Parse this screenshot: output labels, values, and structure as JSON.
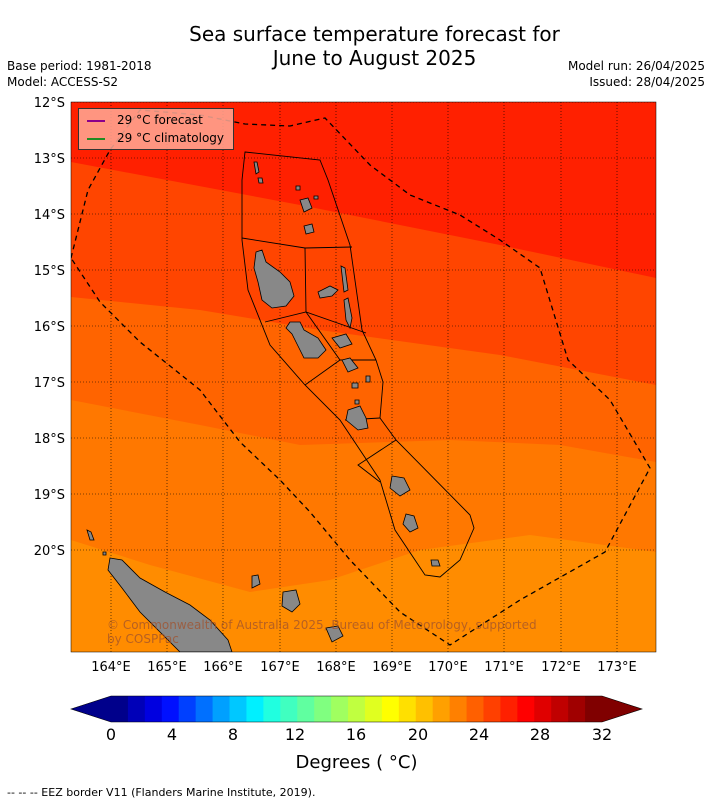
{
  "title_line1": "Sea surface temperature forecast for",
  "title_line2": "June to August 2025",
  "meta_left": [
    "Base period: 1981-2018",
    "Model: ACCESS-S2"
  ],
  "meta_right": [
    "Model run: 26/04/2025",
    "Issued: 28/04/2025"
  ],
  "legend": [
    {
      "label": "29 °C  forecast",
      "color": "#8b008b"
    },
    {
      "label": "29 °C  climatology",
      "color": "#228b22"
    }
  ],
  "copyright": [
    "© Commonwealth of Australia 2025, Bureau of Meteorology, supported",
    "by COSPPac"
  ],
  "lat_labels": [
    "12°S",
    "13°S",
    "14°S",
    "15°S",
    "16°S",
    "17°S",
    "18°S",
    "19°S",
    "20°S"
  ],
  "lon_labels": [
    "164°E",
    "165°E",
    "166°E",
    "167°E",
    "168°E",
    "169°E",
    "170°E",
    "171°E",
    "172°E",
    "173°E"
  ],
  "colorbar": {
    "ticks": [
      "0",
      "4",
      "8",
      "12",
      "16",
      "20",
      "24",
      "28",
      "32"
    ],
    "label": "Degrees ( °C)",
    "colors": [
      "#00008b",
      "#0000b8",
      "#0000e0",
      "#0010ff",
      "#0040ff",
      "#0070ff",
      "#00a0ff",
      "#00c8ff",
      "#00f0ff",
      "#20ffe0",
      "#40ffc0",
      "#60ffa0",
      "#80ff80",
      "#a0ff60",
      "#c0ff40",
      "#e0ff20",
      "#ffff00",
      "#ffe000",
      "#ffc000",
      "#ffa000",
      "#ff8000",
      "#ff6000",
      "#ff4000",
      "#ff2000",
      "#ff0000",
      "#e00000",
      "#c00000",
      "#a00000",
      "#800000"
    ]
  },
  "footnote": "-- -- -- EEZ border V11 (Flanders Marine Institute, 2019).",
  "colors": {
    "sst_29_30": "#ff2000",
    "sst_28_29": "#ff4500",
    "sst_27_28": "#ff6400",
    "sst_26_27": "#ff7800",
    "sst_25_26": "#ff8c00",
    "land": "#888888"
  }
}
